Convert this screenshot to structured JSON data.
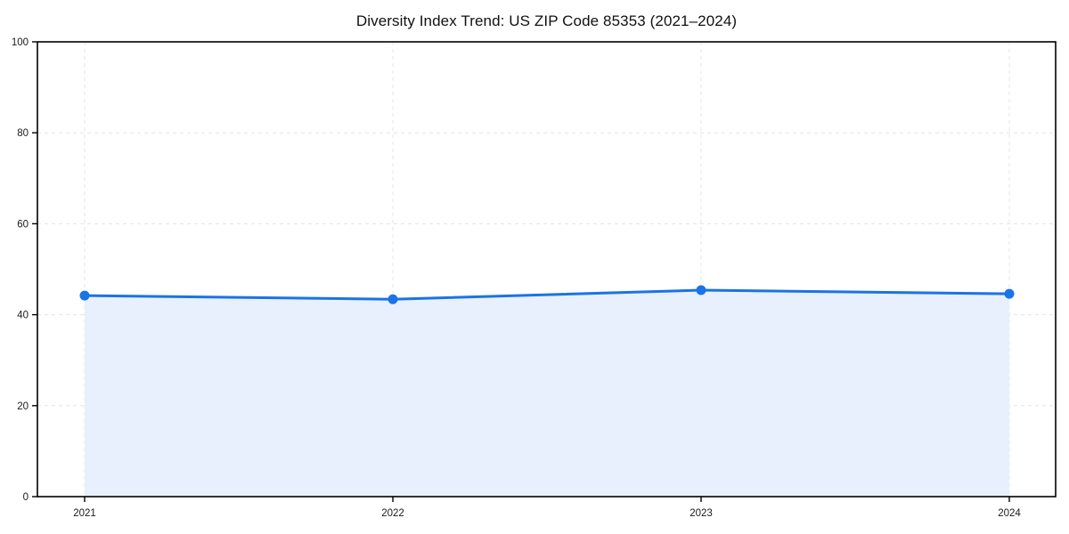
{
  "page": {
    "background": "#ffffff"
  },
  "chart_data": {
    "type": "area",
    "title": "Diversity Index Trend: US ZIP Code 85353 (2021–2024)",
    "categories": [
      "2021",
      "2022",
      "2023",
      "2024"
    ],
    "series": [
      {
        "name": "Diversity Index",
        "values": [
          44.2,
          43.4,
          45.4,
          44.6
        ]
      }
    ],
    "xlabel": "",
    "ylabel": "",
    "ylim": [
      0,
      100
    ],
    "yticks": [
      0,
      20,
      40,
      60,
      80,
      100
    ],
    "grid": "dashed-both",
    "legend": "none",
    "colors": {
      "line": "#1a73e8",
      "marker": "#1a73e8",
      "area_fill": "#e8f0fe",
      "grid": "#e4e4e4",
      "axis": "#000000",
      "tick_text": "#1a1a1a",
      "background": "#ffffff"
    }
  }
}
